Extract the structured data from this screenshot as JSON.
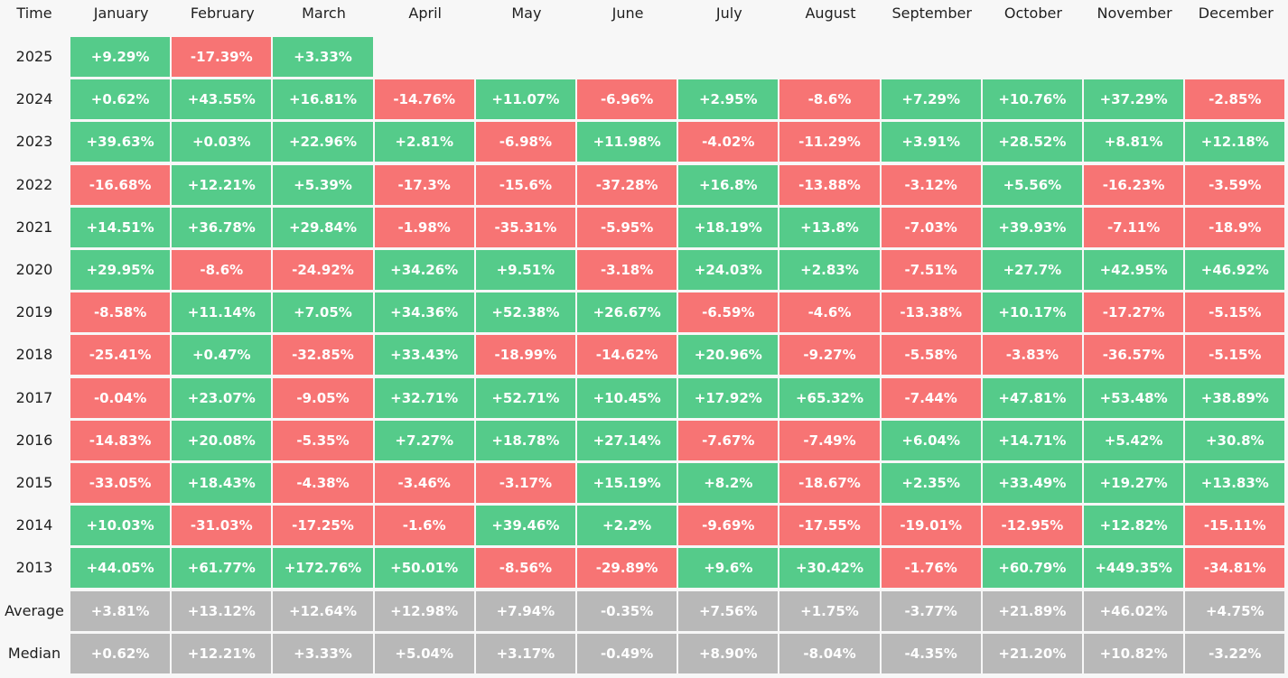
{
  "table": {
    "corner_label": "Time",
    "months": [
      "January",
      "February",
      "March",
      "April",
      "May",
      "June",
      "July",
      "August",
      "September",
      "October",
      "November",
      "December"
    ],
    "rows": [
      {
        "label": "2025",
        "type": "year",
        "values": [
          "+9.29%",
          "-17.39%",
          "+3.33%"
        ]
      },
      {
        "label": "2024",
        "type": "year",
        "values": [
          "+0.62%",
          "+43.55%",
          "+16.81%",
          "-14.76%",
          "+11.07%",
          "-6.96%",
          "+2.95%",
          "-8.6%",
          "+7.29%",
          "+10.76%",
          "+37.29%",
          "-2.85%"
        ]
      },
      {
        "label": "2023",
        "type": "year",
        "values": [
          "+39.63%",
          "+0.03%",
          "+22.96%",
          "+2.81%",
          "-6.98%",
          "+11.98%",
          "-4.02%",
          "-11.29%",
          "+3.91%",
          "+28.52%",
          "+8.81%",
          "+12.18%"
        ]
      },
      {
        "label": "2022",
        "type": "year",
        "values": [
          "-16.68%",
          "+12.21%",
          "+5.39%",
          "-17.3%",
          "-15.6%",
          "-37.28%",
          "+16.8%",
          "-13.88%",
          "-3.12%",
          "+5.56%",
          "-16.23%",
          "-3.59%"
        ]
      },
      {
        "label": "2021",
        "type": "year",
        "values": [
          "+14.51%",
          "+36.78%",
          "+29.84%",
          "-1.98%",
          "-35.31%",
          "-5.95%",
          "+18.19%",
          "+13.8%",
          "-7.03%",
          "+39.93%",
          "-7.11%",
          "-18.9%"
        ]
      },
      {
        "label": "2020",
        "type": "year",
        "values": [
          "+29.95%",
          "-8.6%",
          "-24.92%",
          "+34.26%",
          "+9.51%",
          "-3.18%",
          "+24.03%",
          "+2.83%",
          "-7.51%",
          "+27.7%",
          "+42.95%",
          "+46.92%"
        ]
      },
      {
        "label": "2019",
        "type": "year",
        "values": [
          "-8.58%",
          "+11.14%",
          "+7.05%",
          "+34.36%",
          "+52.38%",
          "+26.67%",
          "-6.59%",
          "-4.6%",
          "-13.38%",
          "+10.17%",
          "-17.27%",
          "-5.15%"
        ]
      },
      {
        "label": "2018",
        "type": "year",
        "values": [
          "-25.41%",
          "+0.47%",
          "-32.85%",
          "+33.43%",
          "-18.99%",
          "-14.62%",
          "+20.96%",
          "-9.27%",
          "-5.58%",
          "-3.83%",
          "-36.57%",
          "-5.15%"
        ]
      },
      {
        "label": "2017",
        "type": "year",
        "values": [
          "-0.04%",
          "+23.07%",
          "-9.05%",
          "+32.71%",
          "+52.71%",
          "+10.45%",
          "+17.92%",
          "+65.32%",
          "-7.44%",
          "+47.81%",
          "+53.48%",
          "+38.89%"
        ]
      },
      {
        "label": "2016",
        "type": "year",
        "values": [
          "-14.83%",
          "+20.08%",
          "-5.35%",
          "+7.27%",
          "+18.78%",
          "+27.14%",
          "-7.67%",
          "-7.49%",
          "+6.04%",
          "+14.71%",
          "+5.42%",
          "+30.8%"
        ]
      },
      {
        "label": "2015",
        "type": "year",
        "values": [
          "-33.05%",
          "+18.43%",
          "-4.38%",
          "-3.46%",
          "-3.17%",
          "+15.19%",
          "+8.2%",
          "-18.67%",
          "+2.35%",
          "+33.49%",
          "+19.27%",
          "+13.83%"
        ]
      },
      {
        "label": "2014",
        "type": "year",
        "values": [
          "+10.03%",
          "-31.03%",
          "-17.25%",
          "-1.6%",
          "+39.46%",
          "+2.2%",
          "-9.69%",
          "-17.55%",
          "-19.01%",
          "-12.95%",
          "+12.82%",
          "-15.11%"
        ]
      },
      {
        "label": "2013",
        "type": "year",
        "values": [
          "+44.05%",
          "+61.77%",
          "+172.76%",
          "+50.01%",
          "-8.56%",
          "-29.89%",
          "+9.6%",
          "+30.42%",
          "-1.76%",
          "+60.79%",
          "+449.35%",
          "-34.81%"
        ]
      },
      {
        "label": "Average",
        "type": "stat",
        "values": [
          "+3.81%",
          "+13.12%",
          "+12.64%",
          "+12.98%",
          "+7.94%",
          "-0.35%",
          "+7.56%",
          "+1.75%",
          "-3.77%",
          "+21.89%",
          "+46.02%",
          "+4.75%"
        ]
      },
      {
        "label": "Median",
        "type": "stat",
        "values": [
          "+0.62%",
          "+12.21%",
          "+3.33%",
          "+5.04%",
          "+3.17%",
          "-0.49%",
          "+8.90%",
          "-8.04%",
          "-4.35%",
          "+21.20%",
          "+10.82%",
          "-3.22%"
        ]
      }
    ]
  },
  "colors": {
    "positive": "#55cb8a",
    "negative": "#f77474",
    "stat": "#b8b8b8",
    "background": "#f7f7f7"
  }
}
